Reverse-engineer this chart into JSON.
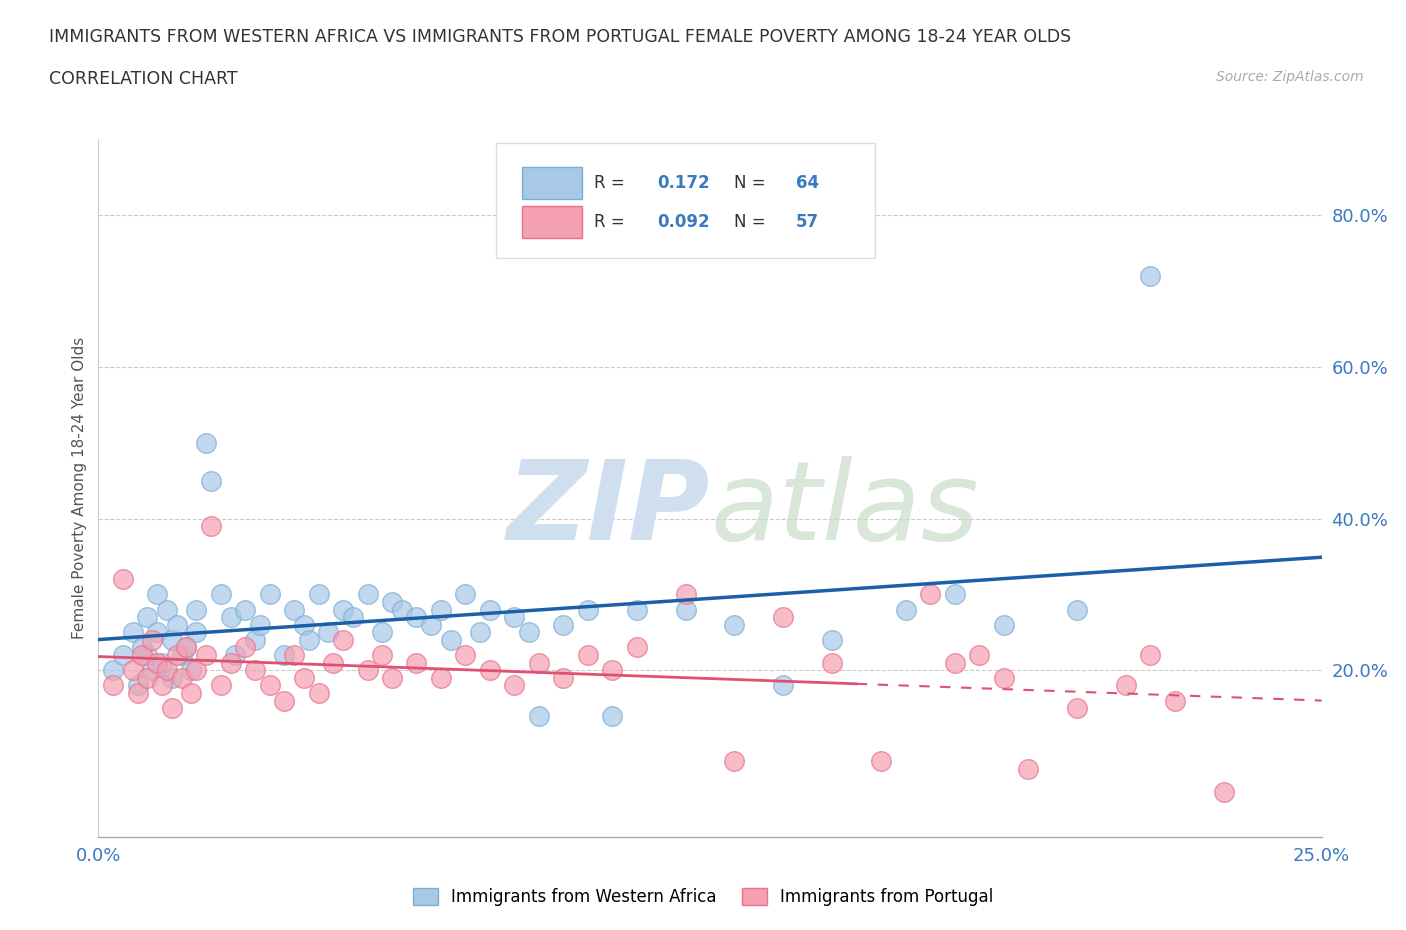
{
  "title_line1": "IMMIGRANTS FROM WESTERN AFRICA VS IMMIGRANTS FROM PORTUGAL FEMALE POVERTY AMONG 18-24 YEAR OLDS",
  "title_line2": "CORRELATION CHART",
  "source_text": "Source: ZipAtlas.com",
  "ylabel": "Female Poverty Among 18-24 Year Olds",
  "xlim": [
    0.0,
    0.25
  ],
  "ylim": [
    -0.02,
    0.9
  ],
  "ytick_positions": [
    0.2,
    0.4,
    0.6,
    0.8
  ],
  "r_blue": 0.172,
  "n_blue": 64,
  "r_pink": 0.092,
  "n_pink": 57,
  "blue_color": "#a8c8e8",
  "pink_color": "#f4a0b0",
  "blue_fill": "#a8c8e8",
  "pink_fill": "#f4a0b0",
  "blue_edge": "#7aafd4",
  "pink_edge": "#e87090",
  "blue_line_color": "#1a5fa8",
  "pink_line_color": "#e05070",
  "label_color": "#3a7abf",
  "watermark_color": "#d0dff0",
  "legend_label_blue": "Immigrants from Western Africa",
  "legend_label_pink": "Immigrants from Portugal",
  "blue_scatter_x": [
    0.003,
    0.005,
    0.007,
    0.008,
    0.009,
    0.01,
    0.01,
    0.011,
    0.012,
    0.012,
    0.013,
    0.014,
    0.015,
    0.015,
    0.016,
    0.017,
    0.018,
    0.019,
    0.02,
    0.02,
    0.022,
    0.023,
    0.025,
    0.027,
    0.028,
    0.03,
    0.032,
    0.033,
    0.035,
    0.038,
    0.04,
    0.042,
    0.043,
    0.045,
    0.047,
    0.05,
    0.052,
    0.055,
    0.058,
    0.06,
    0.062,
    0.065,
    0.068,
    0.07,
    0.072,
    0.075,
    0.078,
    0.08,
    0.085,
    0.088,
    0.09,
    0.095,
    0.1,
    0.105,
    0.11,
    0.12,
    0.13,
    0.14,
    0.15,
    0.165,
    0.175,
    0.185,
    0.2,
    0.215
  ],
  "blue_scatter_y": [
    0.2,
    0.22,
    0.25,
    0.18,
    0.23,
    0.27,
    0.22,
    0.2,
    0.3,
    0.25,
    0.21,
    0.28,
    0.24,
    0.19,
    0.26,
    0.22,
    0.23,
    0.2,
    0.28,
    0.25,
    0.5,
    0.45,
    0.3,
    0.27,
    0.22,
    0.28,
    0.24,
    0.26,
    0.3,
    0.22,
    0.28,
    0.26,
    0.24,
    0.3,
    0.25,
    0.28,
    0.27,
    0.3,
    0.25,
    0.29,
    0.28,
    0.27,
    0.26,
    0.28,
    0.24,
    0.3,
    0.25,
    0.28,
    0.27,
    0.25,
    0.14,
    0.26,
    0.28,
    0.14,
    0.28,
    0.28,
    0.26,
    0.18,
    0.24,
    0.28,
    0.3,
    0.26,
    0.28,
    0.72
  ],
  "pink_scatter_x": [
    0.003,
    0.005,
    0.007,
    0.008,
    0.009,
    0.01,
    0.011,
    0.012,
    0.013,
    0.014,
    0.015,
    0.016,
    0.017,
    0.018,
    0.019,
    0.02,
    0.022,
    0.023,
    0.025,
    0.027,
    0.03,
    0.032,
    0.035,
    0.038,
    0.04,
    0.042,
    0.045,
    0.048,
    0.05,
    0.055,
    0.058,
    0.06,
    0.065,
    0.07,
    0.075,
    0.08,
    0.085,
    0.09,
    0.095,
    0.1,
    0.105,
    0.11,
    0.12,
    0.13,
    0.14,
    0.15,
    0.16,
    0.17,
    0.175,
    0.18,
    0.185,
    0.19,
    0.2,
    0.21,
    0.215,
    0.22,
    0.23
  ],
  "pink_scatter_y": [
    0.18,
    0.32,
    0.2,
    0.17,
    0.22,
    0.19,
    0.24,
    0.21,
    0.18,
    0.2,
    0.15,
    0.22,
    0.19,
    0.23,
    0.17,
    0.2,
    0.22,
    0.39,
    0.18,
    0.21,
    0.23,
    0.2,
    0.18,
    0.16,
    0.22,
    0.19,
    0.17,
    0.21,
    0.24,
    0.2,
    0.22,
    0.19,
    0.21,
    0.19,
    0.22,
    0.2,
    0.18,
    0.21,
    0.19,
    0.22,
    0.2,
    0.23,
    0.3,
    0.08,
    0.27,
    0.21,
    0.08,
    0.3,
    0.21,
    0.22,
    0.19,
    0.07,
    0.15,
    0.18,
    0.22,
    0.16,
    0.04
  ]
}
